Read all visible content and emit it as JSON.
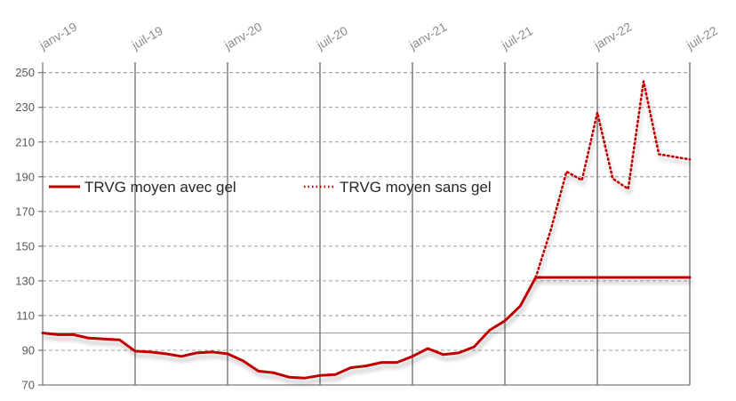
{
  "chart_data": {
    "type": "line",
    "title": "",
    "xlabel": "",
    "ylabel": "",
    "x_ticks": [
      "janv-19",
      "juil-19",
      "janv-20",
      "juil-20",
      "janv-21",
      "juil-21",
      "janv-22",
      "juil-22"
    ],
    "y_ticks": [
      70,
      90,
      110,
      130,
      150,
      170,
      190,
      210,
      230,
      250
    ],
    "ylim": [
      70,
      256
    ],
    "x_range_months": [
      0,
      42
    ],
    "grid": "horizontal dashed, vertical solid at half-year ticks",
    "legend_position": "middle-left",
    "colors": {
      "series": "#c00000",
      "grid": "#808080",
      "axis": "#595959"
    },
    "series": [
      {
        "name": "TRVG moyen avec gel",
        "style": "solid",
        "x": [
          0,
          1,
          2,
          3,
          4,
          5,
          6,
          7,
          8,
          9,
          10,
          11,
          12,
          13,
          14,
          15,
          16,
          17,
          18,
          19,
          20,
          21,
          22,
          23,
          24,
          25,
          26,
          27,
          28,
          29,
          30,
          31,
          32,
          33,
          34,
          35,
          36,
          37,
          38,
          39,
          40,
          41,
          42
        ],
        "values": [
          100.0,
          99.0,
          99.0,
          97.0,
          96.5,
          96.0,
          89.5,
          89.0,
          88.0,
          86.5,
          88.5,
          89.0,
          88.0,
          84.0,
          78.0,
          77.0,
          74.5,
          74.0,
          75.5,
          76.0,
          80.0,
          81.0,
          83.0,
          83.0,
          86.5,
          91.0,
          87.5,
          88.5,
          92.0,
          101.5,
          107.0,
          115.5,
          132.0,
          132.0,
          132.0,
          132.0,
          132.0,
          132.0,
          132.0,
          132.0,
          132.0,
          132.0,
          132.0
        ]
      },
      {
        "name": "TRVG moyen sans gel",
        "style": "dotted",
        "x": [
          32,
          33,
          34,
          35,
          36,
          37,
          38,
          39,
          40,
          41,
          42
        ],
        "values": [
          132.0,
          160.0,
          193.0,
          188.0,
          227.0,
          189.0,
          183.0,
          245.0,
          203.0,
          201.5,
          200.0
        ]
      }
    ]
  }
}
